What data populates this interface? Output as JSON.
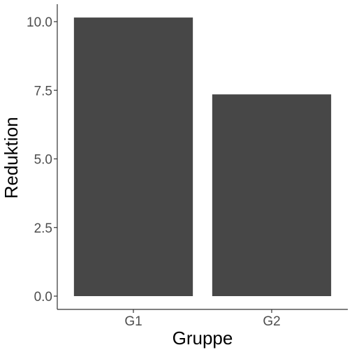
{
  "chart_data": {
    "type": "bar",
    "categories": [
      "G1",
      "G2"
    ],
    "values": [
      10.15,
      7.35
    ],
    "xlabel": "Gruppe",
    "ylabel": "Reduktion",
    "ylim": [
      0,
      10.65
    ],
    "yticks": [
      0.0,
      2.5,
      5.0,
      7.5,
      10.0
    ],
    "ytick_labels": [
      "0.0",
      "2.5",
      "5.0",
      "7.5",
      "10.0"
    ],
    "grid": false,
    "legend": "none",
    "colors": {
      "bar": "#474747",
      "axis": "#333333",
      "tick_label": "#4d4d4d"
    }
  }
}
